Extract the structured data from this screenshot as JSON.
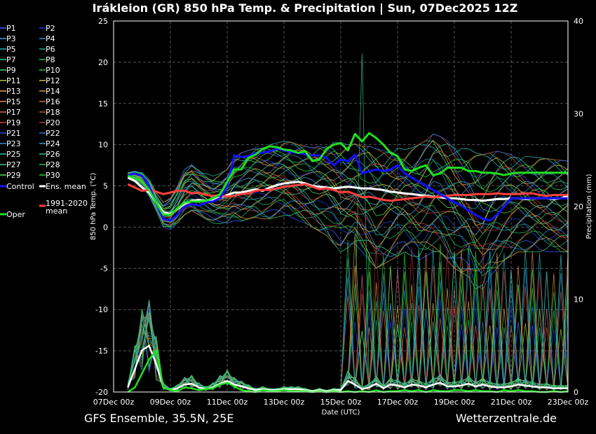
{
  "chart_data": {
    "type": "line",
    "title": "Irákleion  (GR)  850 hPa Temp. & Precipitation | Sun, 07Dec2025 12Z",
    "xlabel": "Date (UTC)",
    "ylabel": "850 hPa Temp. (°C)",
    "y2label": "Precipitation (mm)",
    "xticks": [
      "07Dec 00z",
      "09Dec 00z",
      "11Dec 00z",
      "13Dec 00z",
      "15Dec 00z",
      "17Dec 00z",
      "19Dec 00z",
      "21Dec 00z",
      "23Dec 00z"
    ],
    "ylim": [
      -20,
      25
    ],
    "yticks": [
      -20,
      -15,
      -10,
      -5,
      0,
      5,
      10,
      15,
      20,
      25
    ],
    "y2lim": [
      0,
      40
    ],
    "y2ticks": [
      0,
      10,
      20,
      30,
      40
    ],
    "x_hours": [
      12,
      18,
      24,
      30,
      36,
      42,
      48,
      54,
      60,
      66,
      72,
      78,
      84,
      90,
      96,
      102,
      108,
      114,
      120,
      126,
      132,
      138,
      144,
      150,
      156,
      162,
      168,
      174,
      180,
      186,
      192,
      198,
      204,
      210,
      216,
      222,
      228,
      234,
      240,
      246,
      252,
      258,
      264,
      270,
      276,
      282,
      288,
      294,
      300,
      306,
      312,
      318,
      324,
      330,
      336,
      342,
      348,
      354,
      360,
      366,
      372,
      378,
      384
    ],
    "grid": true,
    "legend": [
      {
        "name": "P1",
        "color": "#3b5bff"
      },
      {
        "name": "P2",
        "color": "#1f3fd8"
      },
      {
        "name": "P3",
        "color": "#3a9fe0"
      },
      {
        "name": "P4",
        "color": "#2c8fc8"
      },
      {
        "name": "P5",
        "color": "#26b8b8"
      },
      {
        "name": "P6",
        "color": "#1fa88a"
      },
      {
        "name": "P7",
        "color": "#2fd08a"
      },
      {
        "name": "P8",
        "color": "#1fbf5a"
      },
      {
        "name": "P9",
        "color": "#45d84a"
      },
      {
        "name": "P10",
        "color": "#39c030"
      },
      {
        "name": "P11",
        "color": "#a8d040"
      },
      {
        "name": "P12",
        "color": "#c8c040"
      },
      {
        "name": "P13",
        "color": "#e0b040"
      },
      {
        "name": "P14",
        "color": "#e09830"
      },
      {
        "name": "P15",
        "color": "#e08850"
      },
      {
        "name": "P16",
        "color": "#d07038"
      },
      {
        "name": "P17",
        "color": "#d86040"
      },
      {
        "name": "P18",
        "color": "#c85030"
      },
      {
        "name": "P19",
        "color": "#c83c3c"
      },
      {
        "name": "P20",
        "color": "#b83030"
      },
      {
        "name": "P21",
        "color": "#3040e0"
      },
      {
        "name": "P22",
        "color": "#3070e8"
      },
      {
        "name": "P23",
        "color": "#3090d8"
      },
      {
        "name": "P24",
        "color": "#30a8d0"
      },
      {
        "name": "P25",
        "color": "#30c0c0"
      },
      {
        "name": "P26",
        "color": "#30c8a0"
      },
      {
        "name": "P27",
        "color": "#30c880"
      },
      {
        "name": "P28",
        "color": "#20b860"
      },
      {
        "name": "P29",
        "color": "#50e050"
      },
      {
        "name": "P30",
        "color": "#30d030"
      },
      {
        "name": "Control",
        "color": "#1010ff"
      },
      {
        "name": "Ens. mean",
        "color": "#ffffff"
      },
      {
        "name": "1991-2020 mean",
        "color": "#ff4040"
      },
      {
        "name": "Oper",
        "color": "#20e020"
      }
    ],
    "series": [
      {
        "name": "Ens. mean",
        "role": "temp",
        "color": "#ffffff",
        "values": [
          6.0,
          5.6,
          4.8,
          4.2,
          3.0,
          1.8,
          1.6,
          2.2,
          2.8,
          3.2,
          3.3,
          3.2,
          3.3,
          3.6,
          3.9,
          4.2,
          4.2,
          4.4,
          4.6,
          4.4,
          4.8,
          5.1,
          5.3,
          5.4,
          5.5,
          5.3,
          5.0,
          4.9,
          4.8,
          4.7,
          4.8,
          4.9,
          4.8,
          4.7,
          4.7,
          4.6,
          4.5,
          4.3,
          4.2,
          4.1,
          4.0,
          3.9,
          3.8,
          3.7,
          3.6,
          3.5,
          3.5,
          3.4,
          3.3,
          3.3,
          3.2,
          3.3,
          3.4,
          3.4,
          3.5,
          3.5,
          3.4,
          3.5,
          3.5,
          3.5,
          3.4,
          3.5,
          3.8
        ]
      },
      {
        "name": "1991-2020 mean",
        "role": "temp",
        "color": "#ff4040",
        "values": [
          5.2,
          4.8,
          4.4,
          4.5,
          4.3,
          4.0,
          4.2,
          4.4,
          4.4,
          4.1,
          4.2,
          3.9,
          3.8,
          3.9,
          3.7,
          3.8,
          4.0,
          4.1,
          4.4,
          4.5,
          4.5,
          4.7,
          4.9,
          5.0,
          5.1,
          5.2,
          4.9,
          4.6,
          4.7,
          4.5,
          4.2,
          4.3,
          4.0,
          3.6,
          3.7,
          3.5,
          3.3,
          3.2,
          3.3,
          3.4,
          3.5,
          3.6,
          3.7,
          3.6,
          3.7,
          3.8,
          3.9,
          3.9,
          3.9,
          4.0,
          4.0,
          4.0,
          4.1,
          4.0,
          4.0,
          4.0,
          4.1,
          4.1,
          3.9,
          3.8,
          3.9,
          3.9,
          3.9
        ]
      },
      {
        "name": "Control",
        "role": "temp",
        "color": "#1010ff",
        "values": [
          6.3,
          6.5,
          6.2,
          5.0,
          3.0,
          1.0,
          0.8,
          1.5,
          2.5,
          2.8,
          2.6,
          3.0,
          3.1,
          3.5,
          5.0,
          8.7,
          8.5,
          8.6,
          9.0,
          9.0,
          9.2,
          9.5,
          9.3,
          9.1,
          9.0,
          8.8,
          8.7,
          8.7,
          8.4,
          7.5,
          8.2,
          8.0,
          8.8,
          6.5,
          6.8,
          7.0,
          6.8,
          7.0,
          7.5,
          6.5,
          6.0,
          5.5,
          5.0,
          4.5,
          4.0,
          3.5,
          3.0,
          2.6,
          2.0,
          1.5,
          1.0,
          0.8,
          1.5,
          2.5,
          3.5,
          3.5,
          3.5,
          3.5,
          3.5,
          3.5,
          3.5,
          3.5,
          3.5
        ]
      },
      {
        "name": "Oper",
        "role": "temp",
        "color": "#20e020",
        "values": [
          6.2,
          6.0,
          5.5,
          4.5,
          3.0,
          1.5,
          1.5,
          2.3,
          3.0,
          3.1,
          3.1,
          3.2,
          3.5,
          4.0,
          5.5,
          7.0,
          7.0,
          8.4,
          8.8,
          9.5,
          9.8,
          9.7,
          9.4,
          9.3,
          9.0,
          9.2,
          8.0,
          8.2,
          9.5,
          10.0,
          10.2,
          9.3,
          11.3,
          10.4,
          11.4,
          10.8,
          10.0,
          9.0,
          8.6,
          7.0,
          6.8,
          7.2,
          7.5,
          6.3,
          6.5,
          7.2,
          7.2,
          7.2,
          6.8,
          6.8,
          6.6,
          6.6,
          6.5,
          6.3,
          6.5,
          6.6,
          6.6,
          6.6,
          6.6,
          6.6,
          6.6,
          6.6,
          6.6
        ]
      },
      {
        "name": "Ens. mean precip",
        "role": "precip",
        "color": "#ffffff",
        "values": [
          0.5,
          2.5,
          4.5,
          5.0,
          3.0,
          0.5,
          0.2,
          0.4,
          0.8,
          0.9,
          0.5,
          0.3,
          0.5,
          0.9,
          1.2,
          0.8,
          0.6,
          0.4,
          0.2,
          0.3,
          0.2,
          0.2,
          0.3,
          0.3,
          0.3,
          0.2,
          0.1,
          0.2,
          0.1,
          0.2,
          0.2,
          1.2,
          0.8,
          0.3,
          0.5,
          0.9,
          0.4,
          0.8,
          0.7,
          0.5,
          0.8,
          0.7,
          0.5,
          0.8,
          1.0,
          0.6,
          0.6,
          0.7,
          0.9,
          0.6,
          0.8,
          0.6,
          0.5,
          0.5,
          0.6,
          0.8,
          0.7,
          0.6,
          0.5,
          0.5,
          0.4,
          0.4,
          0.4
        ]
      },
      {
        "name": "Oper precip",
        "role": "precip",
        "color": "#20e020",
        "values": [
          0.0,
          0.5,
          2.0,
          3.5,
          4.5,
          0.5,
          0.2,
          0.1,
          0.5,
          0.4,
          0.2,
          0.3,
          0.4,
          0.8,
          1.0,
          0.6,
          0.2,
          0.1,
          0.0,
          0.2,
          0.1,
          0.1,
          0.2,
          0.1,
          0.1,
          0.1,
          0.0,
          0.1,
          0.0,
          0.1,
          0.0,
          0.1,
          0.0,
          0.1,
          0.0,
          0.2,
          0.0,
          0.1,
          0.1,
          0.2,
          0.1,
          0.2,
          0.0,
          0.2,
          0.1,
          0.1,
          0.2,
          0.2,
          0.1,
          0.2,
          0.1,
          0.1,
          0.0,
          0.2,
          0.1,
          0.2,
          0.1,
          0.1,
          0.0,
          0.0,
          0.1,
          0.0,
          0.1
        ]
      }
    ],
    "member_temp_envelope": {
      "low": [
        6.0,
        5.8,
        5.0,
        3.8,
        2.0,
        0.0,
        -0.3,
        0.5,
        1.5,
        2.0,
        1.5,
        1.0,
        0.5,
        0.4,
        0.5,
        0.8,
        0.7,
        1.0,
        1.2,
        1.0,
        1.0,
        1.2,
        1.4,
        1.2,
        0.8,
        0.5,
        0.0,
        -0.5,
        -1.0,
        -2.0,
        -3.0,
        -2.5,
        -2.0,
        -3.0,
        -4.0,
        -5.0,
        -4.5,
        -4.0,
        -3.5,
        -3.0,
        -3.5,
        -4.0,
        -3.5,
        -3.0,
        -3.0,
        -4.0,
        -5.0,
        -5.5,
        -6.0,
        -7.5,
        -7.5,
        -6.0,
        -5.0,
        -4.0,
        -3.5,
        -3.0,
        -3.0,
        -3.0,
        -3.0,
        -3.0,
        -3.0,
        -3.0,
        -3.0
      ],
      "high": [
        6.6,
        6.8,
        6.6,
        5.8,
        4.2,
        3.0,
        3.5,
        5.0,
        7.0,
        7.6,
        7.0,
        6.5,
        6.2,
        6.5,
        7.0,
        8.5,
        9.0,
        9.3,
        9.6,
        9.8,
        10.0,
        10.2,
        10.4,
        10.3,
        10.0,
        9.8,
        9.6,
        9.8,
        10.0,
        10.3,
        10.2,
        10.0,
        10.1,
        9.8,
        9.8,
        9.5,
        9.3,
        9.5,
        9.6,
        9.4,
        9.6,
        10.0,
        10.5,
        11.3,
        11.0,
        10.5,
        10.0,
        9.5,
        9.5,
        9.0,
        8.8,
        9.0,
        9.2,
        9.0,
        8.8,
        8.7,
        8.6,
        8.5,
        8.4,
        8.3,
        8.2,
        8.1,
        8.0
      ]
    }
  },
  "footer": {
    "left": "GFS Ensemble, 35.5N, 25E",
    "right": "Wetterzentrale.de"
  }
}
